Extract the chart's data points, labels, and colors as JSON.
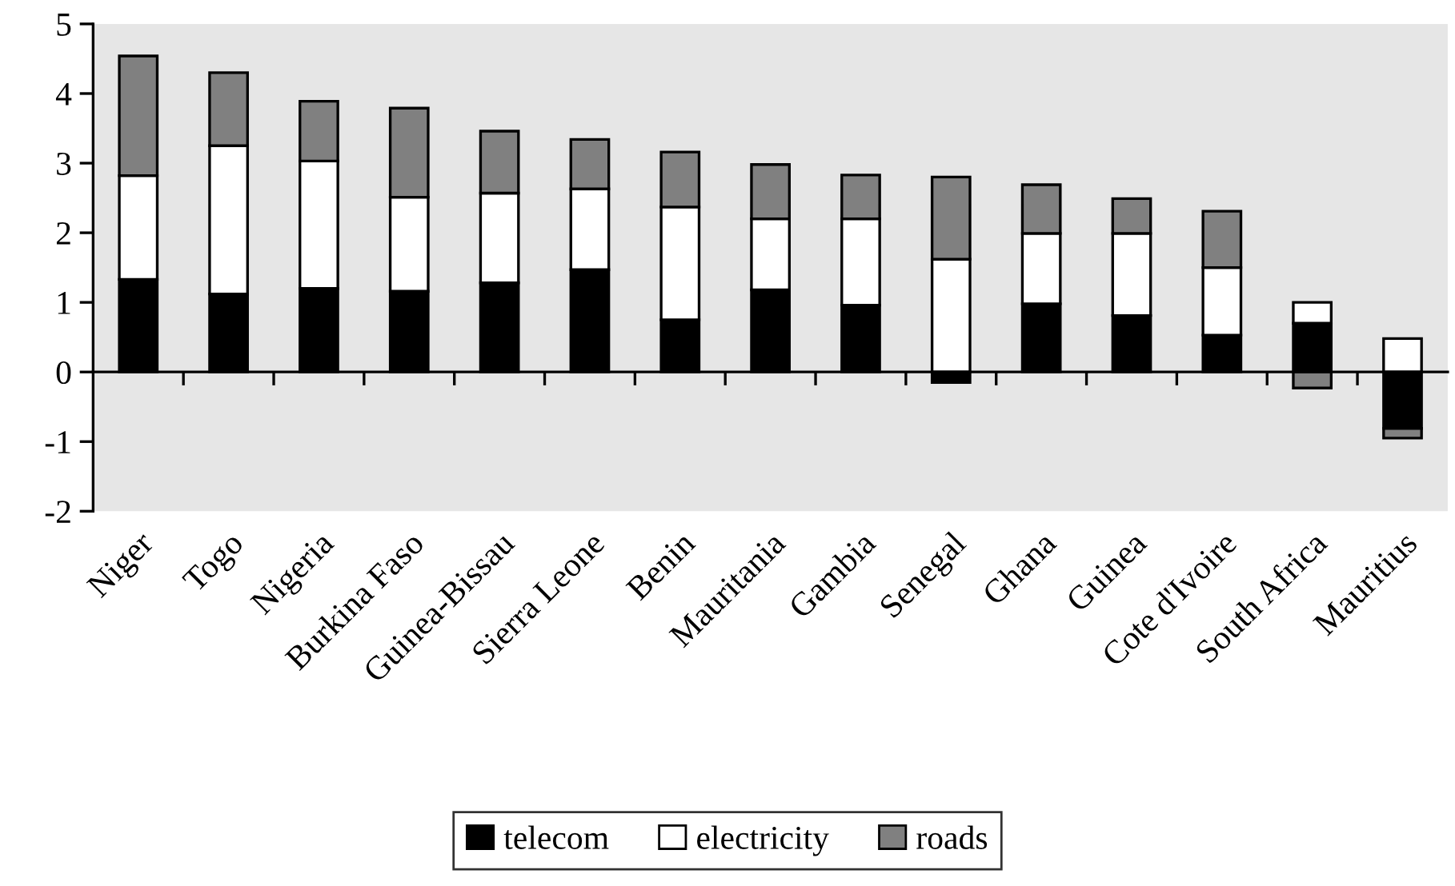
{
  "chart_data": {
    "type": "bar",
    "stacked": true,
    "categories": [
      "Niger",
      "Togo",
      "Nigeria",
      "Burkina Faso",
      "Guinea-Bissau",
      "Sierra Leone",
      "Benin",
      "Mauritania",
      "Gambia",
      "Senegal",
      "Ghana",
      "Guinea",
      "Cote d'Ivoire",
      "South Africa",
      "Mauritius"
    ],
    "series": [
      {
        "name": "telecom",
        "color": "#000000",
        "values": [
          1.33,
          1.12,
          1.2,
          1.16,
          1.28,
          1.47,
          0.75,
          1.18,
          0.96,
          -0.15,
          0.98,
          0.81,
          0.53,
          0.7,
          -0.81
        ]
      },
      {
        "name": "electricity",
        "color": "#ffffff",
        "values": [
          1.49,
          2.13,
          1.83,
          1.35,
          1.29,
          1.16,
          1.62,
          1.02,
          1.24,
          1.62,
          1.01,
          1.18,
          0.97,
          0.3,
          0.48
        ]
      },
      {
        "name": "roads",
        "color": "#808080",
        "values": [
          1.72,
          1.05,
          0.86,
          1.28,
          0.89,
          0.71,
          0.79,
          0.78,
          0.63,
          1.18,
          0.7,
          0.5,
          0.81,
          -0.23,
          -0.14
        ]
      }
    ],
    "ylim": [
      -2,
      5
    ],
    "yticks": [
      -2,
      -1,
      0,
      1,
      2,
      3,
      4,
      5
    ],
    "legend": "bottom"
  }
}
